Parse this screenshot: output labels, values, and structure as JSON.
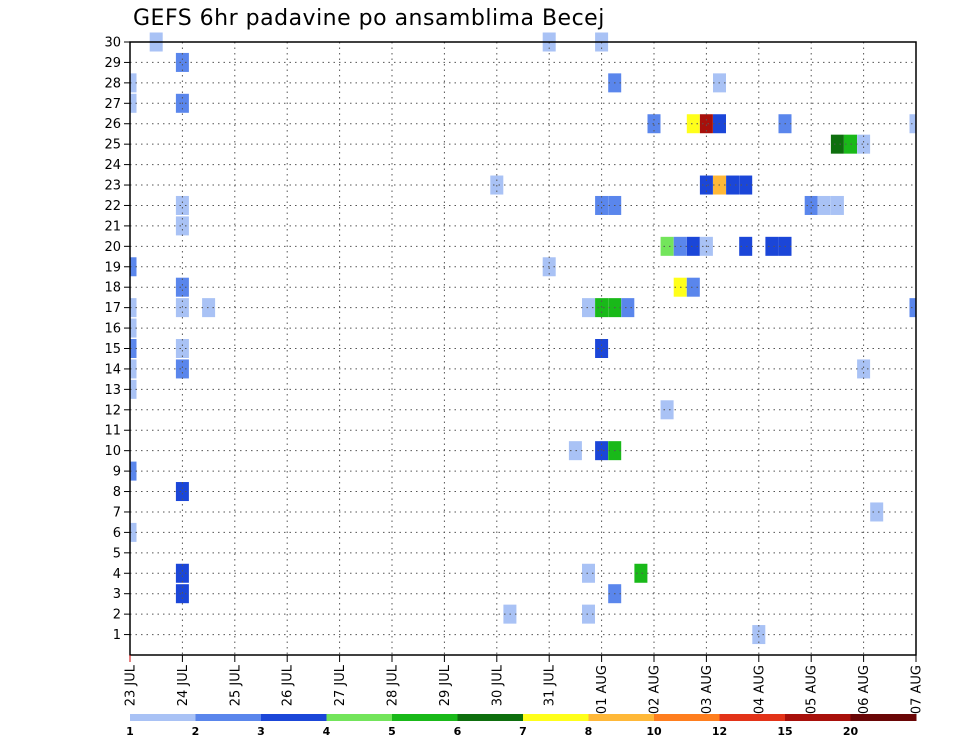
{
  "chart_data": {
    "type": "heatmap",
    "title": "GEFS 6hr padavine po ansamblima Becej",
    "xlabel": "",
    "ylabel": "",
    "x_tick_labels": [
      "23 JUL",
      "24 JUL",
      "25 JUL",
      "26 JUL",
      "27 JUL",
      "28 JUL",
      "29 JUL",
      "30 JUL",
      "31 JUL",
      "01 AUG",
      "02 AUG",
      "03 AUG",
      "04 AUG",
      "05 AUG",
      "06 AUG",
      "07 AUG"
    ],
    "y_tick_labels": [
      "1",
      "2",
      "3",
      "4",
      "5",
      "6",
      "7",
      "8",
      "9",
      "10",
      "11",
      "12",
      "13",
      "14",
      "15",
      "16",
      "17",
      "18",
      "19",
      "20",
      "21",
      "22",
      "23",
      "24",
      "25",
      "26",
      "27",
      "28",
      "29",
      "30"
    ],
    "xlim_steps": [
      0,
      60
    ],
    "steps_per_day": 4,
    "ylim": [
      0,
      30
    ],
    "grid": true,
    "colorbar": {
      "labels": [
        "1",
        "2",
        "3",
        "4",
        "5",
        "6",
        "7",
        "8",
        "10",
        "12",
        "15",
        "20"
      ],
      "colors": [
        "#a9c2f5",
        "#5a86ec",
        "#1b46d8",
        "#73e55b",
        "#19b919",
        "#0e6f0e",
        "#ffff1a",
        "#ffb838",
        "#ff7e1e",
        "#e33318",
        "#a8100b",
        "#6a0606"
      ]
    },
    "cells": [
      {
        "member": 30,
        "step": 2,
        "class": 0
      },
      {
        "member": 30,
        "step": 32,
        "class": 0
      },
      {
        "member": 30,
        "step": 36,
        "class": 0
      },
      {
        "member": 29,
        "step": 4,
        "class": 1
      },
      {
        "member": 28,
        "step": 0,
        "class": 0
      },
      {
        "member": 28,
        "step": 37,
        "class": 1
      },
      {
        "member": 28,
        "step": 45,
        "class": 0
      },
      {
        "member": 27,
        "step": 0,
        "class": 0
      },
      {
        "member": 27,
        "step": 4,
        "class": 1
      },
      {
        "member": 26,
        "step": 40,
        "class": 1
      },
      {
        "member": 26,
        "step": 43,
        "class": 6
      },
      {
        "member": 26,
        "step": 44,
        "class": 10
      },
      {
        "member": 26,
        "step": 45,
        "class": 2
      },
      {
        "member": 26,
        "step": 50,
        "class": 1
      },
      {
        "member": 26,
        "step": 60,
        "class": 0
      },
      {
        "member": 25,
        "step": 54,
        "class": 5
      },
      {
        "member": 25,
        "step": 55,
        "class": 4
      },
      {
        "member": 25,
        "step": 56,
        "class": 0
      },
      {
        "member": 23,
        "step": 28,
        "class": 0
      },
      {
        "member": 23,
        "step": 44,
        "class": 2
      },
      {
        "member": 23,
        "step": 45,
        "class": 7
      },
      {
        "member": 23,
        "step": 46,
        "class": 2
      },
      {
        "member": 23,
        "step": 47,
        "class": 2
      },
      {
        "member": 22,
        "step": 4,
        "class": 0
      },
      {
        "member": 22,
        "step": 36,
        "class": 1
      },
      {
        "member": 22,
        "step": 37,
        "class": 1
      },
      {
        "member": 22,
        "step": 52,
        "class": 1
      },
      {
        "member": 22,
        "step": 53,
        "class": 0
      },
      {
        "member": 22,
        "step": 54,
        "class": 0
      },
      {
        "member": 21,
        "step": 4,
        "class": 0
      },
      {
        "member": 20,
        "step": 41,
        "class": 3
      },
      {
        "member": 20,
        "step": 42,
        "class": 1
      },
      {
        "member": 20,
        "step": 43,
        "class": 2
      },
      {
        "member": 20,
        "step": 44,
        "class": 0
      },
      {
        "member": 20,
        "step": 47,
        "class": 2
      },
      {
        "member": 20,
        "step": 49,
        "class": 2
      },
      {
        "member": 20,
        "step": 50,
        "class": 2
      },
      {
        "member": 19,
        "step": 0,
        "class": 1
      },
      {
        "member": 19,
        "step": 32,
        "class": 0
      },
      {
        "member": 18,
        "step": 4,
        "class": 1
      },
      {
        "member": 18,
        "step": 42,
        "class": 6
      },
      {
        "member": 18,
        "step": 43,
        "class": 1
      },
      {
        "member": 17,
        "step": 0,
        "class": 0
      },
      {
        "member": 17,
        "step": 4,
        "class": 0
      },
      {
        "member": 17,
        "step": 6,
        "class": 0
      },
      {
        "member": 17,
        "step": 35,
        "class": 0
      },
      {
        "member": 17,
        "step": 36,
        "class": 4
      },
      {
        "member": 17,
        "step": 37,
        "class": 4
      },
      {
        "member": 17,
        "step": 38,
        "class": 1
      },
      {
        "member": 17,
        "step": 60,
        "class": 1
      },
      {
        "member": 16,
        "step": 0,
        "class": 0
      },
      {
        "member": 15,
        "step": 0,
        "class": 1
      },
      {
        "member": 15,
        "step": 4,
        "class": 0
      },
      {
        "member": 15,
        "step": 36,
        "class": 2
      },
      {
        "member": 14,
        "step": 0,
        "class": 0
      },
      {
        "member": 14,
        "step": 4,
        "class": 1
      },
      {
        "member": 14,
        "step": 56,
        "class": 0
      },
      {
        "member": 13,
        "step": 0,
        "class": 0
      },
      {
        "member": 12,
        "step": 41,
        "class": 0
      },
      {
        "member": 10,
        "step": 34,
        "class": 0
      },
      {
        "member": 10,
        "step": 36,
        "class": 2
      },
      {
        "member": 10,
        "step": 37,
        "class": 4
      },
      {
        "member": 9,
        "step": 0,
        "class": 1
      },
      {
        "member": 8,
        "step": 4,
        "class": 2
      },
      {
        "member": 7,
        "step": 57,
        "class": 0
      },
      {
        "member": 6,
        "step": 0,
        "class": 0
      },
      {
        "member": 4,
        "step": 4,
        "class": 2
      },
      {
        "member": 4,
        "step": 35,
        "class": 0
      },
      {
        "member": 4,
        "step": 39,
        "class": 4
      },
      {
        "member": 3,
        "step": 4,
        "class": 2
      },
      {
        "member": 3,
        "step": 37,
        "class": 1
      },
      {
        "member": 2,
        "step": 29,
        "class": 0
      },
      {
        "member": 2,
        "step": 35,
        "class": 0
      },
      {
        "member": 1,
        "step": 48,
        "class": 0
      }
    ]
  }
}
